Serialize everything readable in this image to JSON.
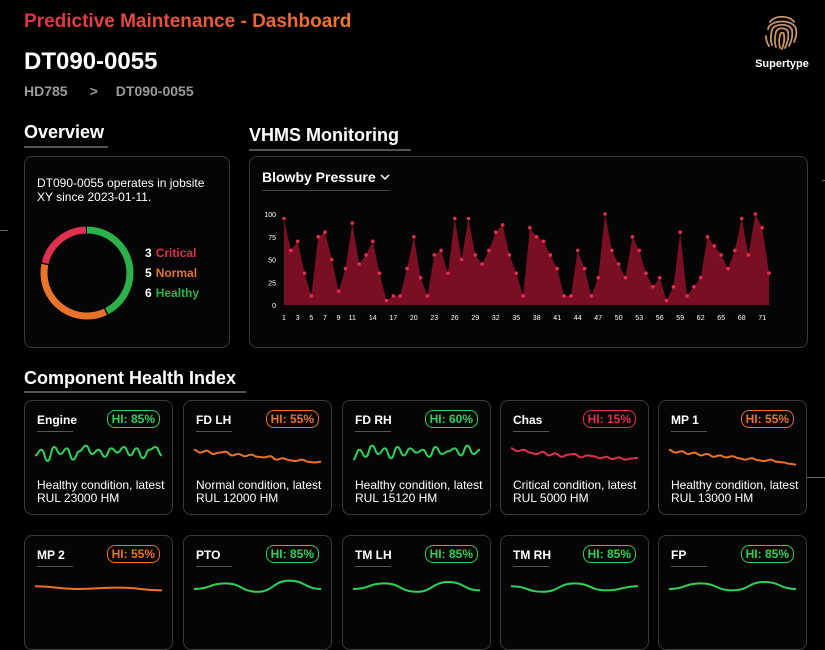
{
  "header": {
    "app_title": "Predictive Maintenance - Dashboard",
    "page_title": "DT090-0055",
    "breadcrumb": [
      "HD785",
      "DT090-0055"
    ],
    "breadcrumb_sep": ">",
    "logo_text": "Supertype"
  },
  "overview": {
    "title": "Overview",
    "description": "DT090-0055 operates in jobsite XY since 2023-01-11.",
    "legend": [
      {
        "count": "3",
        "label": "Critical",
        "color": "#e0304f"
      },
      {
        "count": "5",
        "label": "Normal",
        "color": "#e8732a"
      },
      {
        "count": "6",
        "label": "Healthy",
        "color": "#2db24a"
      }
    ]
  },
  "vhms": {
    "title": "VHMS Monitoring",
    "metric_selected": "Blowby Pressure",
    "chevron_icon": "chevron-down-icon"
  },
  "chart_data": {
    "type": "area",
    "title": "Blowby Pressure",
    "ylim": [
      0,
      100
    ],
    "yticks": [
      "100",
      "75",
      "50",
      "25",
      "0"
    ],
    "xtick_labels": [
      "1",
      "3",
      "5",
      "7",
      "9",
      "11",
      "14",
      "17",
      "20",
      "23",
      "26",
      "29",
      "32",
      "35",
      "38",
      "41",
      "44",
      "47",
      "50",
      "53",
      "56",
      "59",
      "62",
      "65",
      "68",
      "71"
    ],
    "x": [
      1,
      2,
      3,
      4,
      5,
      6,
      7,
      8,
      9,
      10,
      11,
      12,
      13,
      14,
      15,
      16,
      17,
      18,
      19,
      20,
      21,
      22,
      23,
      24,
      25,
      26,
      27,
      28,
      29,
      30,
      31,
      32,
      33,
      34,
      35,
      36,
      37,
      38,
      39,
      40,
      41,
      42,
      43,
      44,
      45,
      46,
      47,
      48,
      49,
      50,
      51,
      52,
      53,
      54,
      55,
      56,
      57,
      58,
      59,
      60,
      61,
      62,
      63,
      64,
      65,
      66,
      67,
      68,
      69,
      70,
      71,
      72
    ],
    "values": [
      95,
      60,
      70,
      35,
      10,
      75,
      80,
      50,
      15,
      40,
      90,
      45,
      55,
      70,
      35,
      5,
      10,
      10,
      40,
      75,
      30,
      10,
      55,
      60,
      35,
      95,
      50,
      95,
      55,
      45,
      60,
      80,
      88,
      55,
      35,
      10,
      85,
      75,
      70,
      55,
      40,
      10,
      10,
      60,
      40,
      10,
      30,
      100,
      60,
      45,
      30,
      75,
      60,
      35,
      20,
      30,
      5,
      20,
      80,
      10,
      20,
      30,
      75,
      65,
      55,
      40,
      60,
      95,
      55,
      100,
      85,
      35
    ],
    "color": "#7a0f24",
    "point_color": "#e0304f"
  },
  "components": {
    "title": "Component Health Index",
    "cards": [
      {
        "name": "Engine",
        "hi": "HI: 85%",
        "status": "Healthy condition, latest RUL 23000 HM",
        "color": "#2fd15a",
        "spark": [
          0.55,
          0.35,
          0.75,
          0.25,
          0.5,
          0.3,
          0.7,
          0.4,
          0.2,
          0.5,
          0.35,
          0.6,
          0.3,
          0.45,
          0.25,
          0.55,
          0.3,
          0.65,
          0.35,
          0.25,
          0.55
        ]
      },
      {
        "name": "FD LH",
        "hi": "HI: 55%",
        "status": "Normal condition, latest RUL 12000 HM",
        "color": "#e8732a",
        "spark": [
          0.35,
          0.45,
          0.38,
          0.5,
          0.45,
          0.42,
          0.55,
          0.5,
          0.58,
          0.52,
          0.6,
          0.62,
          0.58,
          0.7,
          0.65,
          0.72,
          0.75,
          0.7,
          0.78,
          0.8,
          0.78
        ]
      },
      {
        "name": "FD RH",
        "hi": "HI: 60%",
        "status": "Healthy condition, latest RUL 15120 HM",
        "color": "#2fd15a",
        "spark": [
          0.7,
          0.35,
          0.6,
          0.2,
          0.5,
          0.3,
          0.65,
          0.25,
          0.55,
          0.3,
          0.45,
          0.35,
          0.6,
          0.25,
          0.5,
          0.4,
          0.3,
          0.55,
          0.2,
          0.5,
          0.35
        ]
      },
      {
        "name": "Chas",
        "hi": "HI: 15%",
        "status": "Critical condition, latest RUL 5000 HM",
        "color": "#e0304f",
        "spark": [
          0.3,
          0.4,
          0.35,
          0.45,
          0.5,
          0.42,
          0.55,
          0.48,
          0.6,
          0.52,
          0.5,
          0.62,
          0.55,
          0.58,
          0.65,
          0.6,
          0.68,
          0.62,
          0.7,
          0.66,
          0.64
        ]
      },
      {
        "name": "MP 1",
        "hi": "HI: 55%",
        "status": "Healthy condition, latest RUL 13000 HM",
        "color": "#e8732a",
        "spark": [
          0.35,
          0.45,
          0.4,
          0.5,
          0.45,
          0.55,
          0.5,
          0.6,
          0.55,
          0.62,
          0.58,
          0.65,
          0.7,
          0.65,
          0.72,
          0.75,
          0.7,
          0.78,
          0.8,
          0.85,
          0.88
        ]
      },
      {
        "name": "MP 2",
        "hi": "HI: 55%",
        "status": "",
        "color": "#e8732a",
        "spark": [
          0.4,
          0.5,
          0.45,
          0.55
        ]
      },
      {
        "name": "PTO",
        "hi": "HI: 85%",
        "status": "",
        "color": "#2fd15a",
        "spark": [
          0.5,
          0.3,
          0.6,
          0.2,
          0.5
        ]
      },
      {
        "name": "TM LH",
        "hi": "HI: 85%",
        "status": "",
        "color": "#2fd15a",
        "spark": [
          0.5,
          0.3,
          0.6,
          0.25,
          0.55
        ]
      },
      {
        "name": "TM RH",
        "hi": "HI: 85%",
        "status": "",
        "color": "#2fd15a",
        "spark": [
          0.4,
          0.6,
          0.3,
          0.55,
          0.4
        ]
      },
      {
        "name": "FP",
        "hi": "HI: 85%",
        "status": "",
        "color": "#2fd15a",
        "spark": [
          0.5,
          0.3,
          0.55,
          0.25,
          0.5
        ]
      }
    ]
  }
}
